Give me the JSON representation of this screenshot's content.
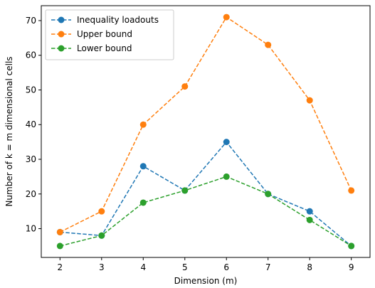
{
  "chart_data": {
    "type": "line",
    "title": "",
    "xlabel": "Dimension (m)",
    "ylabel": "Number of k = m dimensional cells",
    "x": [
      2,
      3,
      4,
      5,
      6,
      7,
      8,
      9
    ],
    "x_ticks": [
      "2",
      "3",
      "4",
      "5",
      "6",
      "7",
      "8",
      "9"
    ],
    "y_ticks": [
      "10",
      "20",
      "30",
      "40",
      "50",
      "60",
      "70"
    ],
    "xlim": [
      1.55,
      9.45
    ],
    "ylim": [
      1.7,
      74.3
    ],
    "grid": false,
    "legend_position": "upper-left",
    "line_style": "dashed",
    "marker": "circle",
    "series": [
      {
        "name": "Inequality loadouts",
        "color": "#1f77b4",
        "values": [
          9,
          8,
          28,
          21,
          35,
          20,
          15,
          5
        ]
      },
      {
        "name": "Upper bound",
        "color": "#ff7f0e",
        "values": [
          9,
          15,
          40,
          51,
          71,
          63,
          47,
          21
        ]
      },
      {
        "name": "Lower bound",
        "color": "#2ca02c",
        "values": [
          5,
          8,
          17.5,
          21,
          25,
          20,
          12.5,
          5
        ]
      }
    ]
  }
}
